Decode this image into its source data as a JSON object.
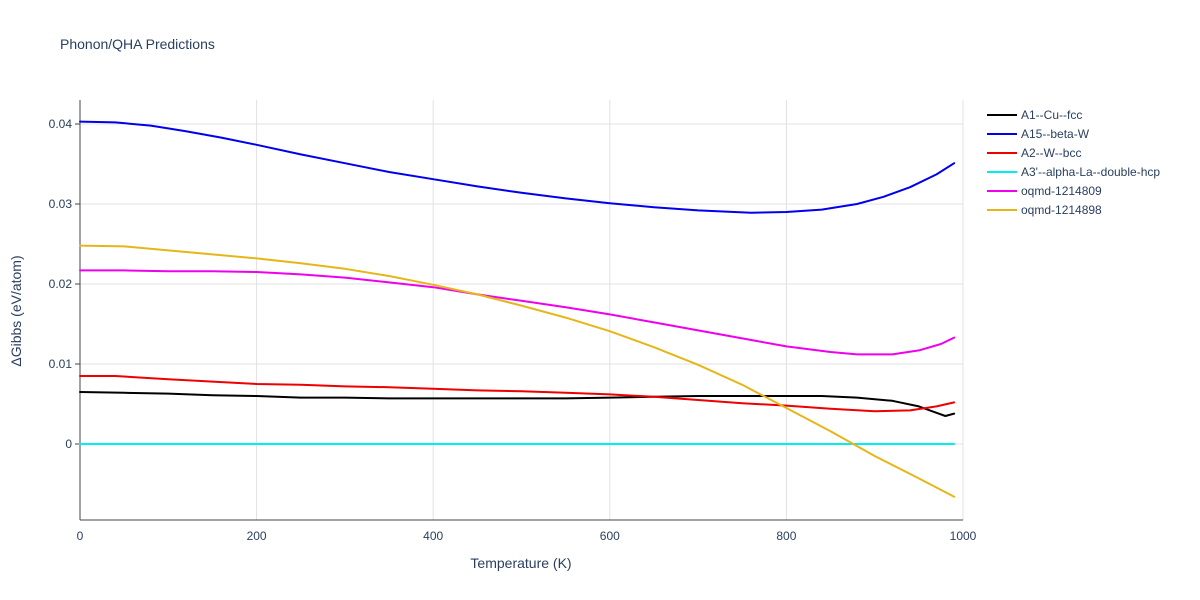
{
  "chart_data": {
    "type": "line",
    "title": "Phonon/QHA Predictions",
    "xlabel": "Temperature (K)",
    "ylabel": "ΔGibbs (eV/atom)",
    "xlim": [
      0,
      1000
    ],
    "ylim": [
      -0.0095,
      0.043
    ],
    "x_ticks": [
      0,
      200,
      400,
      600,
      800,
      1000
    ],
    "x_tick_labels": [
      "0",
      "200",
      "400",
      "600",
      "800",
      "1000"
    ],
    "y_ticks": [
      0,
      0.01,
      0.02,
      0.03,
      0.04
    ],
    "y_tick_labels": [
      "0",
      "0.01",
      "0.02",
      "0.03",
      "0.04"
    ],
    "grid": true,
    "legend_position": "right",
    "series": [
      {
        "name": "A1--Cu--fcc",
        "color": "#000000",
        "x": [
          0,
          50,
          100,
          150,
          200,
          250,
          300,
          350,
          400,
          450,
          500,
          550,
          600,
          650,
          700,
          750,
          800,
          840,
          880,
          920,
          950,
          970,
          980,
          990
        ],
        "y": [
          0.0065,
          0.0064,
          0.0063,
          0.0061,
          0.006,
          0.0058,
          0.0058,
          0.0057,
          0.0057,
          0.0057,
          0.0057,
          0.0057,
          0.0058,
          0.0059,
          0.006,
          0.006,
          0.006,
          0.006,
          0.0058,
          0.0054,
          0.0047,
          0.0039,
          0.0035,
          0.0038
        ]
      },
      {
        "name": "A15--beta-W",
        "color": "#0000ee",
        "x": [
          0,
          40,
          80,
          120,
          160,
          200,
          250,
          300,
          350,
          400,
          450,
          500,
          550,
          600,
          650,
          700,
          760,
          800,
          840,
          880,
          910,
          940,
          970,
          990
        ],
        "y": [
          0.0403,
          0.0402,
          0.0398,
          0.0391,
          0.0383,
          0.0374,
          0.0362,
          0.0351,
          0.034,
          0.0331,
          0.0322,
          0.0314,
          0.0307,
          0.0301,
          0.0296,
          0.0292,
          0.0289,
          0.029,
          0.0293,
          0.03,
          0.0309,
          0.0321,
          0.0337,
          0.0351
        ]
      },
      {
        "name": "A2--W--bcc",
        "color": "#ee0000",
        "x": [
          0,
          40,
          100,
          150,
          200,
          250,
          300,
          350,
          400,
          450,
          500,
          550,
          600,
          650,
          700,
          750,
          800,
          850,
          900,
          940,
          970,
          990
        ],
        "y": [
          0.0085,
          0.0085,
          0.0081,
          0.0078,
          0.0075,
          0.0074,
          0.0072,
          0.0071,
          0.0069,
          0.0067,
          0.0066,
          0.0064,
          0.0062,
          0.0059,
          0.0055,
          0.0051,
          0.0048,
          0.0044,
          0.0041,
          0.0042,
          0.0047,
          0.0052
        ]
      },
      {
        "name": "A3'--alpha-La--double-hcp",
        "color": "#00eeee",
        "x": [
          0,
          990
        ],
        "y": [
          0.0,
          0.0
        ]
      },
      {
        "name": "oqmd-1214809",
        "color": "#ee00ee",
        "x": [
          0,
          50,
          100,
          150,
          200,
          250,
          300,
          350,
          400,
          450,
          500,
          550,
          600,
          650,
          700,
          750,
          800,
          850,
          880,
          900,
          920,
          950,
          975,
          990
        ],
        "y": [
          0.0217,
          0.0217,
          0.0216,
          0.0216,
          0.0215,
          0.0212,
          0.0208,
          0.0202,
          0.0196,
          0.0187,
          0.0179,
          0.0171,
          0.0162,
          0.0152,
          0.0142,
          0.0132,
          0.0122,
          0.0115,
          0.0112,
          0.0112,
          0.0112,
          0.0117,
          0.0125,
          0.0133
        ]
      },
      {
        "name": "oqmd-1214898",
        "color": "#e6b619",
        "x": [
          0,
          50,
          100,
          150,
          200,
          250,
          300,
          350,
          400,
          450,
          500,
          550,
          600,
          650,
          700,
          750,
          800,
          850,
          900,
          950,
          990
        ],
        "y": [
          0.0248,
          0.0247,
          0.0242,
          0.0237,
          0.0232,
          0.0226,
          0.0219,
          0.021,
          0.0199,
          0.0187,
          0.0173,
          0.0158,
          0.0141,
          0.0121,
          0.0099,
          0.0074,
          0.0045,
          0.0016,
          -0.0015,
          -0.0043,
          -0.0066
        ]
      }
    ]
  }
}
